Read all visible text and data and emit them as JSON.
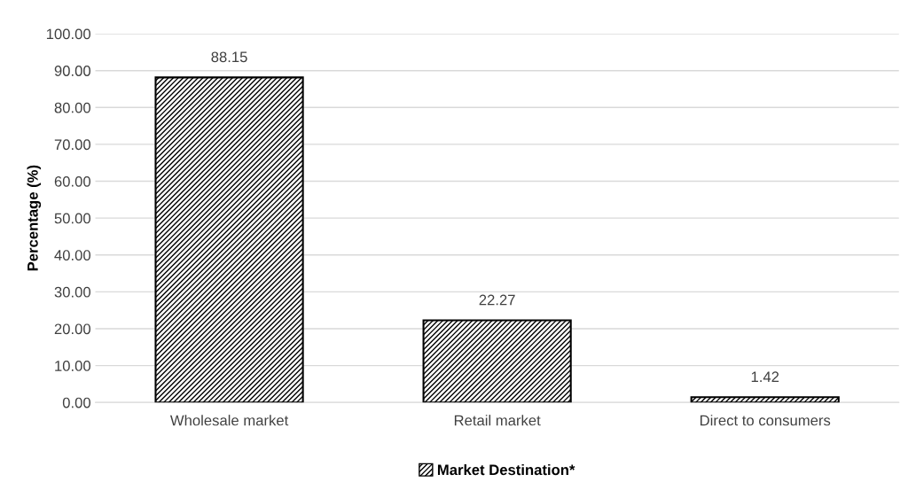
{
  "chart_data": {
    "type": "bar",
    "ylabel": "Percentage (%)",
    "categories": [
      "Wholesale market",
      "Retail market",
      "Direct to consumers"
    ],
    "series": [
      {
        "name": "Market Destination*",
        "color": "#000000",
        "values": [
          88.15,
          22.27,
          1.42
        ]
      }
    ],
    "ylim": [
      0,
      100
    ],
    "yticks": [
      {
        "value": 0,
        "label": "0.00"
      },
      {
        "value": 10,
        "label": "10.00"
      },
      {
        "value": 20,
        "label": "20.00"
      },
      {
        "value": 30,
        "label": "30.00"
      },
      {
        "value": 40,
        "label": "40.00"
      },
      {
        "value": 50,
        "label": "50.00"
      },
      {
        "value": 60,
        "label": "60.00"
      },
      {
        "value": 70,
        "label": "70.00"
      },
      {
        "value": 80,
        "label": "80.00"
      },
      {
        "value": 90,
        "label": "90.00"
      },
      {
        "value": 100,
        "label": "100.00"
      }
    ],
    "grid": "y",
    "legend": "bottom",
    "data_labels": true
  }
}
